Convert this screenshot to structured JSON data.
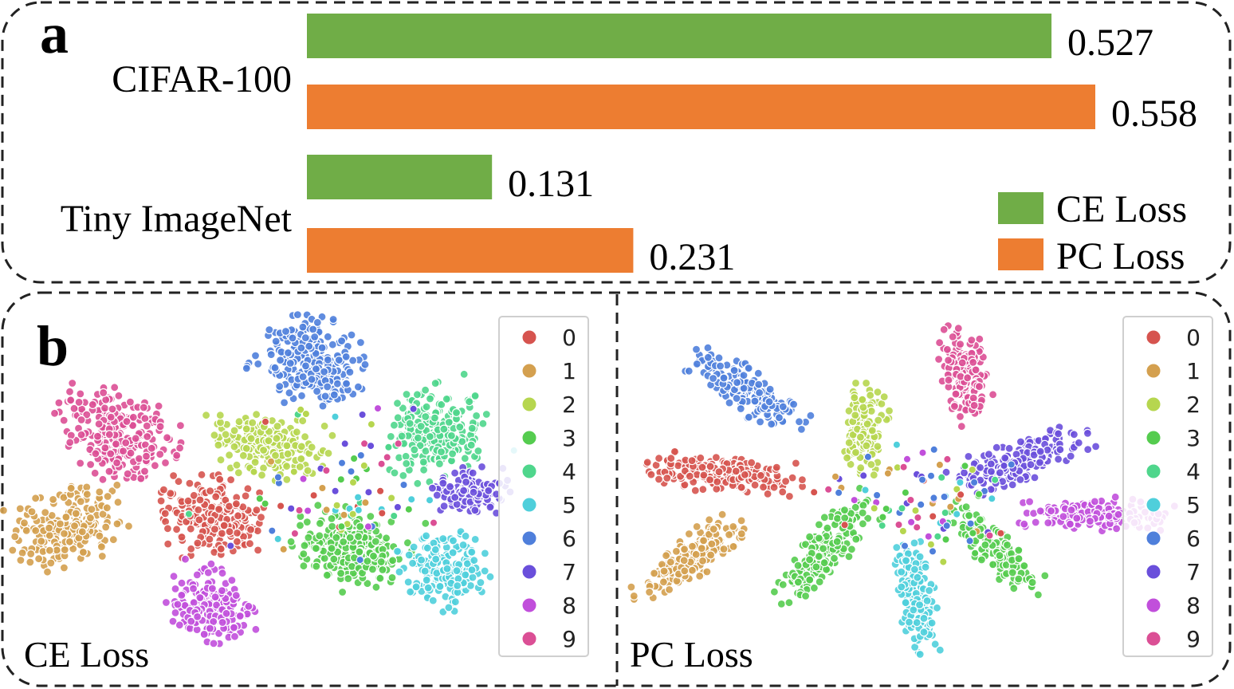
{
  "panel_a": {
    "label": "a",
    "chart_data": {
      "type": "bar",
      "orientation": "horizontal",
      "categories": [
        "CIFAR-100",
        "Tiny ImageNet"
      ],
      "series": [
        {
          "name": "CE Loss",
          "values": [
            0.527,
            0.131
          ],
          "color": "#70ad47"
        },
        {
          "name": "PC Loss",
          "values": [
            0.558,
            0.231
          ],
          "color": "#ed7d31"
        }
      ],
      "value_labels": true,
      "xlim": [
        0,
        0.6
      ],
      "legend_position": "bottom-right"
    }
  },
  "panel_b": {
    "label": "b",
    "plots": [
      {
        "caption": "CE Loss",
        "chart_data": {
          "type": "scatter",
          "method": "t-SNE embedding",
          "legend_labels": [
            "0",
            "1",
            "2",
            "3",
            "4",
            "5",
            "6",
            "7",
            "8",
            "9"
          ],
          "legend_position": "right"
        }
      },
      {
        "caption": "PC Loss",
        "chart_data": {
          "type": "scatter",
          "method": "t-SNE embedding",
          "legend_labels": [
            "0",
            "1",
            "2",
            "3",
            "4",
            "5",
            "6",
            "7",
            "8",
            "9"
          ],
          "legend_position": "right"
        }
      }
    ],
    "class_colors": [
      "#d6544f",
      "#d4a04f",
      "#b6d64f",
      "#55cc4f",
      "#4fd68c",
      "#4fcfdb",
      "#4f7fdb",
      "#6a4fdb",
      "#c14fdb",
      "#db4f95"
    ]
  }
}
